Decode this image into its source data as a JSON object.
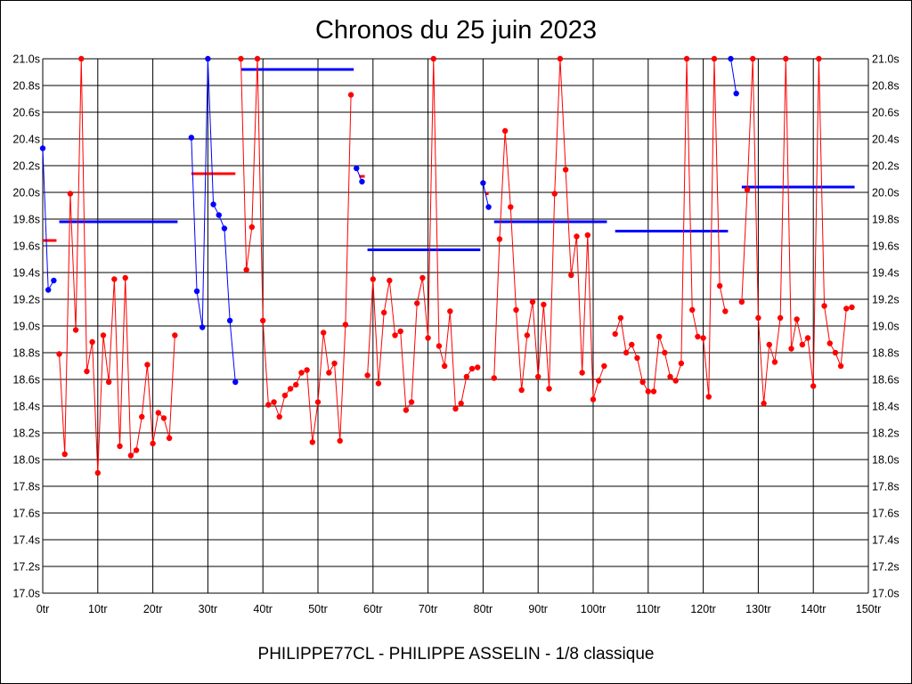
{
  "chart_data": {
    "type": "line",
    "title": "Chronos du 25 juin 2023",
    "subtitle": "PHILIPPE77CL - PHILIPPE ASSELIN - 1/8 classique",
    "xlabel": "",
    "ylabel": "",
    "xlim": [
      0,
      150
    ],
    "ylim": [
      17.0,
      21.0
    ],
    "grid": true,
    "x_ticks": [
      0,
      10,
      20,
      30,
      40,
      50,
      60,
      70,
      80,
      90,
      100,
      110,
      120,
      130,
      140,
      150
    ],
    "x_tick_labels": [
      "0tr",
      "10tr",
      "20tr",
      "30tr",
      "40tr",
      "50tr",
      "60tr",
      "70tr",
      "80tr",
      "90tr",
      "100tr",
      "110tr",
      "120tr",
      "130tr",
      "140tr",
      "150tr"
    ],
    "y_ticks": [
      17.0,
      17.2,
      17.4,
      17.6,
      17.8,
      18.0,
      18.2,
      18.4,
      18.6,
      18.8,
      19.0,
      19.2,
      19.4,
      19.6,
      19.8,
      20.0,
      20.2,
      20.4,
      20.6,
      20.8,
      21.0
    ],
    "y_tick_labels": [
      "17.0s",
      "17.2s",
      "17.4s",
      "17.6s",
      "17.8s",
      "18.0s",
      "18.2s",
      "18.4s",
      "18.6s",
      "18.8s",
      "19.0s",
      "19.2s",
      "19.4s",
      "19.6s",
      "19.8s",
      "20.0s",
      "20.2s",
      "20.4s",
      "20.6s",
      "20.8s",
      "21.0s"
    ],
    "colors": {
      "red": "#ff0000",
      "blue": "#0000ff",
      "grid": "#000000"
    },
    "series": [
      {
        "name": "stint-1-blue",
        "color": "blue",
        "x": [
          0,
          1,
          2
        ],
        "y": [
          20.33,
          19.27,
          19.34
        ]
      },
      {
        "name": "stint-1-red",
        "color": "red",
        "x": [
          3,
          4,
          5,
          6,
          7,
          8,
          9,
          10,
          11,
          12,
          13,
          14,
          15,
          16,
          17,
          18,
          19,
          20,
          21,
          22,
          23,
          24
        ],
        "y": [
          18.79,
          18.04,
          19.99,
          18.97,
          21.0,
          18.66,
          18.88,
          17.9,
          18.93,
          18.58,
          19.35,
          18.1,
          19.36,
          18.03,
          18.07,
          18.32,
          18.71,
          18.12,
          18.35,
          18.31,
          18.16,
          18.93
        ]
      },
      {
        "name": "stint-2-blue",
        "color": "blue",
        "x": [
          27,
          28,
          29,
          30,
          31,
          32,
          33,
          34,
          35
        ],
        "y": [
          20.41,
          19.26,
          18.99,
          21.0,
          19.91,
          19.83,
          19.73,
          19.04,
          18.58
        ]
      },
      {
        "name": "stint-2-red",
        "color": "red",
        "x": [
          36,
          37,
          38,
          39,
          40,
          41,
          42,
          43,
          44,
          45,
          46,
          47,
          48,
          49,
          50,
          51,
          52,
          53,
          54,
          55,
          56
        ],
        "y": [
          21.0,
          19.42,
          19.74,
          21.0,
          19.04,
          18.41,
          18.43,
          18.32,
          18.48,
          18.53,
          18.56,
          18.65,
          18.67,
          18.13,
          18.43,
          18.95,
          18.65,
          18.72,
          18.14,
          19.01,
          20.73
        ]
      },
      {
        "name": "stint-3-blue",
        "color": "blue",
        "x": [
          57,
          58
        ],
        "y": [
          20.18,
          20.08
        ]
      },
      {
        "name": "stint-3-red",
        "color": "red",
        "x": [
          59,
          60,
          61,
          62,
          63,
          64,
          65,
          66,
          67,
          68,
          69,
          70,
          71,
          72,
          73,
          74,
          75,
          76,
          77,
          78,
          79
        ],
        "y": [
          18.63,
          19.35,
          18.57,
          19.1,
          19.34,
          18.93,
          18.96,
          18.37,
          18.43,
          19.17,
          19.36,
          18.91,
          21.0,
          18.85,
          18.7,
          19.11,
          18.38,
          18.42,
          18.62,
          18.68,
          18.69
        ]
      },
      {
        "name": "stint-4-blue",
        "color": "blue",
        "x": [
          80,
          81
        ],
        "y": [
          20.07,
          19.89
        ]
      },
      {
        "name": "stint-4-red",
        "color": "red",
        "x": [
          82,
          83,
          84,
          85,
          86,
          87,
          88,
          89,
          90,
          91,
          92,
          93,
          94,
          95,
          96,
          97,
          98,
          99,
          100,
          101,
          102
        ],
        "y": [
          18.61,
          19.65,
          20.46,
          19.89,
          19.12,
          18.52,
          18.93,
          19.18,
          18.62,
          19.16,
          18.53,
          19.99,
          21.0,
          20.17,
          19.38,
          19.67,
          18.65,
          19.68,
          18.45,
          18.59,
          18.7
        ]
      },
      {
        "name": "stint-5-red",
        "color": "red",
        "x": [
          104,
          105,
          106,
          107,
          108,
          109,
          110,
          111,
          112,
          113,
          114,
          115,
          116,
          117,
          118,
          119,
          120,
          121,
          122,
          123,
          124
        ],
        "y": [
          18.94,
          19.06,
          18.8,
          18.86,
          18.76,
          18.58,
          18.51,
          18.51,
          18.92,
          18.8,
          18.62,
          18.59,
          18.72,
          21.0,
          19.12,
          18.92,
          18.91,
          18.47,
          21.0,
          19.3,
          19.11
        ]
      },
      {
        "name": "stint-6-blue",
        "color": "blue",
        "x": [
          125,
          126
        ],
        "y": [
          21.0,
          20.74
        ]
      },
      {
        "name": "stint-6-red",
        "color": "red",
        "x": [
          127,
          128,
          129,
          130,
          131,
          132,
          133,
          134,
          135,
          136,
          137,
          138,
          139,
          140,
          141,
          142,
          143,
          144,
          145,
          146,
          147
        ],
        "y": [
          19.18,
          20.02,
          21.0,
          19.06,
          18.42,
          18.86,
          18.73,
          19.06,
          21.0,
          18.83,
          19.05,
          18.86,
          18.91,
          18.55,
          21.0,
          19.15,
          18.87,
          18.8,
          18.7,
          19.13,
          19.14
        ]
      }
    ],
    "short_marks": [
      {
        "color": "red",
        "x_start": 0,
        "x_end": 2.5,
        "y": 19.64
      },
      {
        "color": "red",
        "x_start": 27,
        "x_end": 35,
        "y": 20.14
      },
      {
        "color": "red",
        "x_start": 57.5,
        "x_end": 58.5,
        "y": 20.12
      },
      {
        "color": "red",
        "x_start": 80.5,
        "x_end": 81,
        "y": 19.99
      }
    ],
    "averages": [
      {
        "color": "blue",
        "x_start": 3,
        "x_end": 24.5,
        "y": 19.78
      },
      {
        "color": "blue",
        "x_start": 36,
        "x_end": 56.5,
        "y": 20.92
      },
      {
        "color": "blue",
        "x_start": 59,
        "x_end": 79.5,
        "y": 19.57
      },
      {
        "color": "blue",
        "x_start": 82,
        "x_end": 102.5,
        "y": 19.78
      },
      {
        "color": "blue",
        "x_start": 104,
        "x_end": 124.5,
        "y": 19.71
      },
      {
        "color": "blue",
        "x_start": 127,
        "x_end": 147.5,
        "y": 20.04
      }
    ]
  }
}
